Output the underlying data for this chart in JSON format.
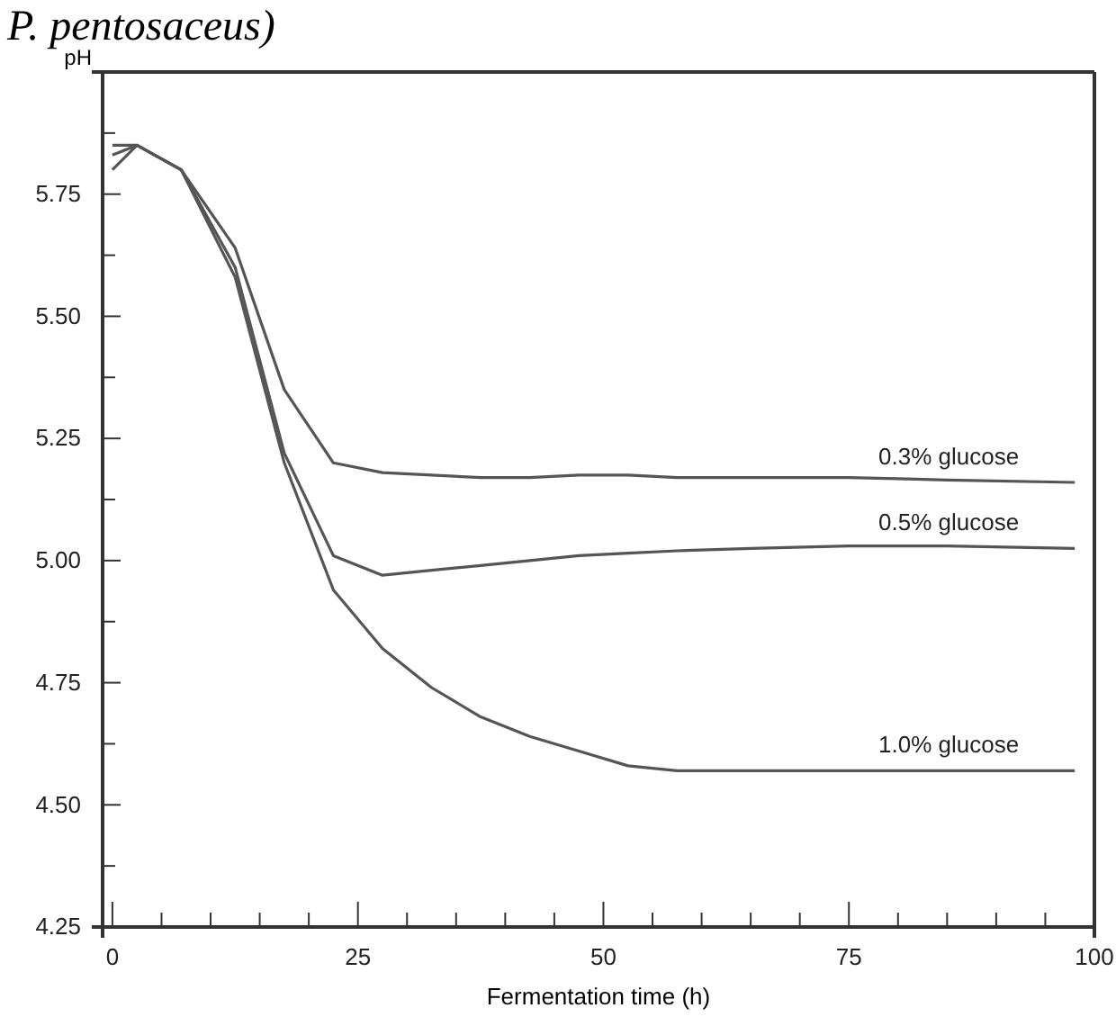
{
  "chart_data": {
    "type": "line",
    "title": "P. pentosaceus)",
    "xlabel": "Fermentation time (h)",
    "ylabel": "pH",
    "xlim": [
      -1,
      100
    ],
    "ylim": [
      4.25,
      6.0
    ],
    "xticks": [
      0,
      {
        "value": 5,
        "label": null
      },
      {
        "value": 10,
        "label": null
      },
      {
        "value": 15,
        "label": null
      },
      {
        "value": 20,
        "label": null
      },
      25,
      {
        "value": 30,
        "label": null
      },
      {
        "value": 35,
        "label": null
      },
      {
        "value": 40,
        "label": null
      },
      {
        "value": 45,
        "label": null
      },
      50,
      {
        "value": 55,
        "label": null
      },
      {
        "value": 60,
        "label": null
      },
      {
        "value": 65,
        "label": null
      },
      {
        "value": 70,
        "label": null
      },
      75,
      {
        "value": 80,
        "label": null
      },
      {
        "value": 85,
        "label": null
      },
      {
        "value": 90,
        "label": null
      },
      {
        "value": 95,
        "label": null
      },
      100
    ],
    "yticks": [
      {
        "value": 4.25,
        "label": "4.25"
      },
      {
        "value": 4.375,
        "label": null
      },
      {
        "value": 4.5,
        "label": "4.50"
      },
      {
        "value": 4.625,
        "label": null
      },
      {
        "value": 4.75,
        "label": "4.75"
      },
      {
        "value": 4.875,
        "label": null
      },
      {
        "value": 5.0,
        "label": "5.00"
      },
      {
        "value": 5.125,
        "label": null
      },
      {
        "value": 5.25,
        "label": "5.25"
      },
      {
        "value": 5.375,
        "label": null
      },
      {
        "value": 5.5,
        "label": "5.50"
      },
      {
        "value": 5.625,
        "label": null
      },
      {
        "value": 5.75,
        "label": "5.75"
      },
      {
        "value": 5.875,
        "label": null
      }
    ],
    "grid": false,
    "legend": false,
    "marker": "none",
    "line_style": "solid",
    "x": [
      0,
      2.5,
      7,
      12.5,
      17.5,
      22.5,
      27.5,
      32.5,
      37.5,
      42.5,
      47.5,
      52.5,
      57.5,
      65,
      75,
      85,
      98
    ],
    "series": [
      {
        "name": "0.3% glucose",
        "color": "#555555",
        "values": [
          5.83,
          5.85,
          5.8,
          5.64,
          5.35,
          5.2,
          5.18,
          5.175,
          5.17,
          5.17,
          5.175,
          5.175,
          5.17,
          5.17,
          5.17,
          5.165,
          5.16
        ]
      },
      {
        "name": "0.5% glucose",
        "color": "#555555",
        "values": [
          5.8,
          5.85,
          5.8,
          5.6,
          5.22,
          5.01,
          4.97,
          4.98,
          4.99,
          5.0,
          5.01,
          5.015,
          5.02,
          5.025,
          5.03,
          5.03,
          5.025
        ]
      },
      {
        "name": "1.0% glucose",
        "color": "#555555",
        "values": [
          5.85,
          5.85,
          5.8,
          5.58,
          5.2,
          4.94,
          4.82,
          4.74,
          4.68,
          4.64,
          4.61,
          4.58,
          4.57,
          4.57,
          4.57,
          4.57,
          4.57
        ]
      }
    ]
  }
}
